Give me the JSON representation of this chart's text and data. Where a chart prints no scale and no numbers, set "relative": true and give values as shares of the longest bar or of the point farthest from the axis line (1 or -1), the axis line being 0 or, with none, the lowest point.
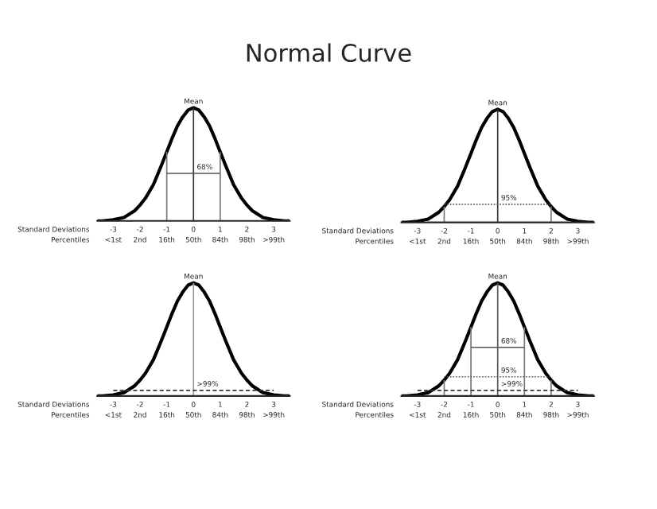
{
  "chart_data": [
    {
      "type": "line",
      "title": "Normal Curve",
      "relative": true,
      "annotations": [
        "Standard Deviations",
        "Percentiles",
        "<1st",
        "2nd",
        "16th",
        "50th",
        "84th",
        "98th",
        ">99th"
      ],
      "xlim": [
        -3.6,
        3.6
      ],
      "xticks": [
        -3,
        -2,
        -1,
        0,
        1,
        2,
        3
      ],
      "series": [
        {
          "color": "#000000",
          "x": [
            -3.6,
            -3.4,
            -3,
            -2.6,
            -2.2,
            -2,
            -1.8,
            -1.5,
            -1.2,
            -1,
            -0.8,
            -0.6,
            -0.4,
            -0.2,
            0,
            0.2,
            0.4,
            0.6,
            0.8,
            1,
            1.2,
            1.5,
            1.8,
            2,
            2.2,
            2.6,
            3,
            3.4,
            3.6
          ],
          "values": [
            0,
            0,
            0.01,
            0.03,
            0.09,
            0.14,
            0.2,
            0.32,
            0.49,
            0.61,
            0.73,
            0.84,
            0.92,
            0.98,
            1,
            0.98,
            0.92,
            0.84,
            0.73,
            0.61,
            0.49,
            0.32,
            0.2,
            0.14,
            0.09,
            0.03,
            0.01,
            0,
            0
          ]
        },
        {
          "name": "Mean",
          "color": "#333333",
          "x": [
            0,
            0
          ],
          "values": [
            0,
            1
          ]
        },
        {
          "color": "#777777",
          "x": [
            -1,
            -1
          ],
          "values": [
            0,
            0.61
          ]
        },
        {
          "color": "#777777",
          "x": [
            1,
            1
          ],
          "values": [
            0,
            0.61
          ]
        },
        {
          "name": "68%",
          "color": "#555555",
          "x": [
            -1,
            1
          ],
          "values": [
            0.42,
            0.42
          ],
          "line_style": "solid"
        }
      ]
    },
    {
      "type": "line",
      "relative": true,
      "annotations": [
        "Standard Deviations",
        "Percentiles",
        "<1st",
        "2nd",
        "16th",
        "50th",
        "84th",
        "98th",
        ">99th"
      ],
      "xlim": [
        -3.6,
        3.6
      ],
      "xticks": [
        -3,
        -2,
        -1,
        0,
        1,
        2,
        3
      ],
      "series": [
        {
          "color": "#000000",
          "x": [
            -3.6,
            -3.4,
            -3,
            -2.6,
            -2.2,
            -2,
            -1.8,
            -1.5,
            -1.2,
            -1,
            -0.8,
            -0.6,
            -0.4,
            -0.2,
            0,
            0.2,
            0.4,
            0.6,
            0.8,
            1,
            1.2,
            1.5,
            1.8,
            2,
            2.2,
            2.6,
            3,
            3.4,
            3.6
          ],
          "values": [
            0,
            0,
            0.01,
            0.03,
            0.09,
            0.14,
            0.2,
            0.32,
            0.49,
            0.61,
            0.73,
            0.84,
            0.92,
            0.98,
            1,
            0.98,
            0.92,
            0.84,
            0.73,
            0.61,
            0.49,
            0.32,
            0.2,
            0.14,
            0.09,
            0.03,
            0.01,
            0,
            0
          ]
        },
        {
          "name": "Mean",
          "color": "#333333",
          "x": [
            0,
            0
          ],
          "values": [
            0,
            1
          ]
        },
        {
          "color": "#777777",
          "x": [
            -2,
            -2
          ],
          "values": [
            0,
            0.14
          ]
        },
        {
          "color": "#777777",
          "x": [
            2,
            2
          ],
          "values": [
            0,
            0.14
          ]
        },
        {
          "name": "95%",
          "color": "#555555",
          "x": [
            -2,
            2
          ],
          "values": [
            0.16,
            0.16
          ],
          "line_style": "dotted"
        }
      ]
    },
    {
      "type": "line",
      "relative": true,
      "annotations": [
        "Standard Deviations",
        "Percentiles",
        "<1st",
        "2nd",
        "16th",
        "50th",
        "84th",
        "98th",
        ">99th"
      ],
      "xlim": [
        -3.6,
        3.6
      ],
      "xticks": [
        -3,
        -2,
        -1,
        0,
        1,
        2,
        3
      ],
      "series": [
        {
          "color": "#000000",
          "x": [
            -3.6,
            -3.4,
            -3,
            -2.6,
            -2.2,
            -2,
            -1.8,
            -1.5,
            -1.2,
            -1,
            -0.8,
            -0.6,
            -0.4,
            -0.2,
            0,
            0.2,
            0.4,
            0.6,
            0.8,
            1,
            1.2,
            1.5,
            1.8,
            2,
            2.2,
            2.6,
            3,
            3.4,
            3.6
          ],
          "values": [
            0,
            0,
            0.01,
            0.03,
            0.09,
            0.14,
            0.2,
            0.32,
            0.49,
            0.61,
            0.73,
            0.84,
            0.92,
            0.98,
            1,
            0.98,
            0.92,
            0.84,
            0.73,
            0.61,
            0.49,
            0.32,
            0.2,
            0.14,
            0.09,
            0.03,
            0.01,
            0,
            0
          ]
        },
        {
          "name": "Mean",
          "color": "#999999",
          "x": [
            0,
            0
          ],
          "values": [
            0,
            1
          ]
        },
        {
          "name": ">99%",
          "color": "#333333",
          "x": [
            -3,
            3
          ],
          "values": [
            0.05,
            0.05
          ],
          "line_style": "dashed"
        }
      ]
    },
    {
      "type": "line",
      "relative": true,
      "annotations": [
        "Standard Deviations",
        "Percentiles",
        "<1st",
        "2nd",
        "16th",
        "50th",
        "84th",
        "98th",
        ">99th"
      ],
      "xlim": [
        -3.6,
        3.6
      ],
      "xticks": [
        -3,
        -2,
        -1,
        0,
        1,
        2,
        3
      ],
      "series": [
        {
          "color": "#000000",
          "x": [
            -3.6,
            -3.4,
            -3,
            -2.6,
            -2.2,
            -2,
            -1.8,
            -1.5,
            -1.2,
            -1,
            -0.8,
            -0.6,
            -0.4,
            -0.2,
            0,
            0.2,
            0.4,
            0.6,
            0.8,
            1,
            1.2,
            1.5,
            1.8,
            2,
            2.2,
            2.6,
            3,
            3.4,
            3.6
          ],
          "values": [
            0,
            0,
            0.01,
            0.03,
            0.09,
            0.14,
            0.2,
            0.32,
            0.49,
            0.61,
            0.73,
            0.84,
            0.92,
            0.98,
            1,
            0.98,
            0.92,
            0.84,
            0.73,
            0.61,
            0.49,
            0.32,
            0.2,
            0.14,
            0.09,
            0.03,
            0.01,
            0,
            0
          ]
        },
        {
          "name": "Mean",
          "color": "#555555",
          "x": [
            0,
            0
          ],
          "values": [
            0,
            1
          ]
        },
        {
          "color": "#777777",
          "x": [
            -1,
            -1
          ],
          "values": [
            0,
            0.61
          ]
        },
        {
          "color": "#777777",
          "x": [
            1,
            1
          ],
          "values": [
            0,
            0.61
          ]
        },
        {
          "name": "68%",
          "color": "#555555",
          "x": [
            -1,
            1
          ],
          "values": [
            0.43,
            0.43
          ],
          "line_style": "solid"
        },
        {
          "color": "#777777",
          "x": [
            -2,
            -2
          ],
          "values": [
            0,
            0.14
          ]
        },
        {
          "color": "#777777",
          "x": [
            2,
            2
          ],
          "values": [
            0,
            0.14
          ]
        },
        {
          "name": "95%",
          "color": "#555555",
          "x": [
            -2,
            2
          ],
          "values": [
            0.17,
            0.17
          ],
          "line_style": "dotted"
        },
        {
          "name": ">99%",
          "color": "#333333",
          "x": [
            -3,
            3
          ],
          "values": [
            0.05,
            0.05
          ],
          "line_style": "dashed"
        }
      ]
    }
  ]
}
